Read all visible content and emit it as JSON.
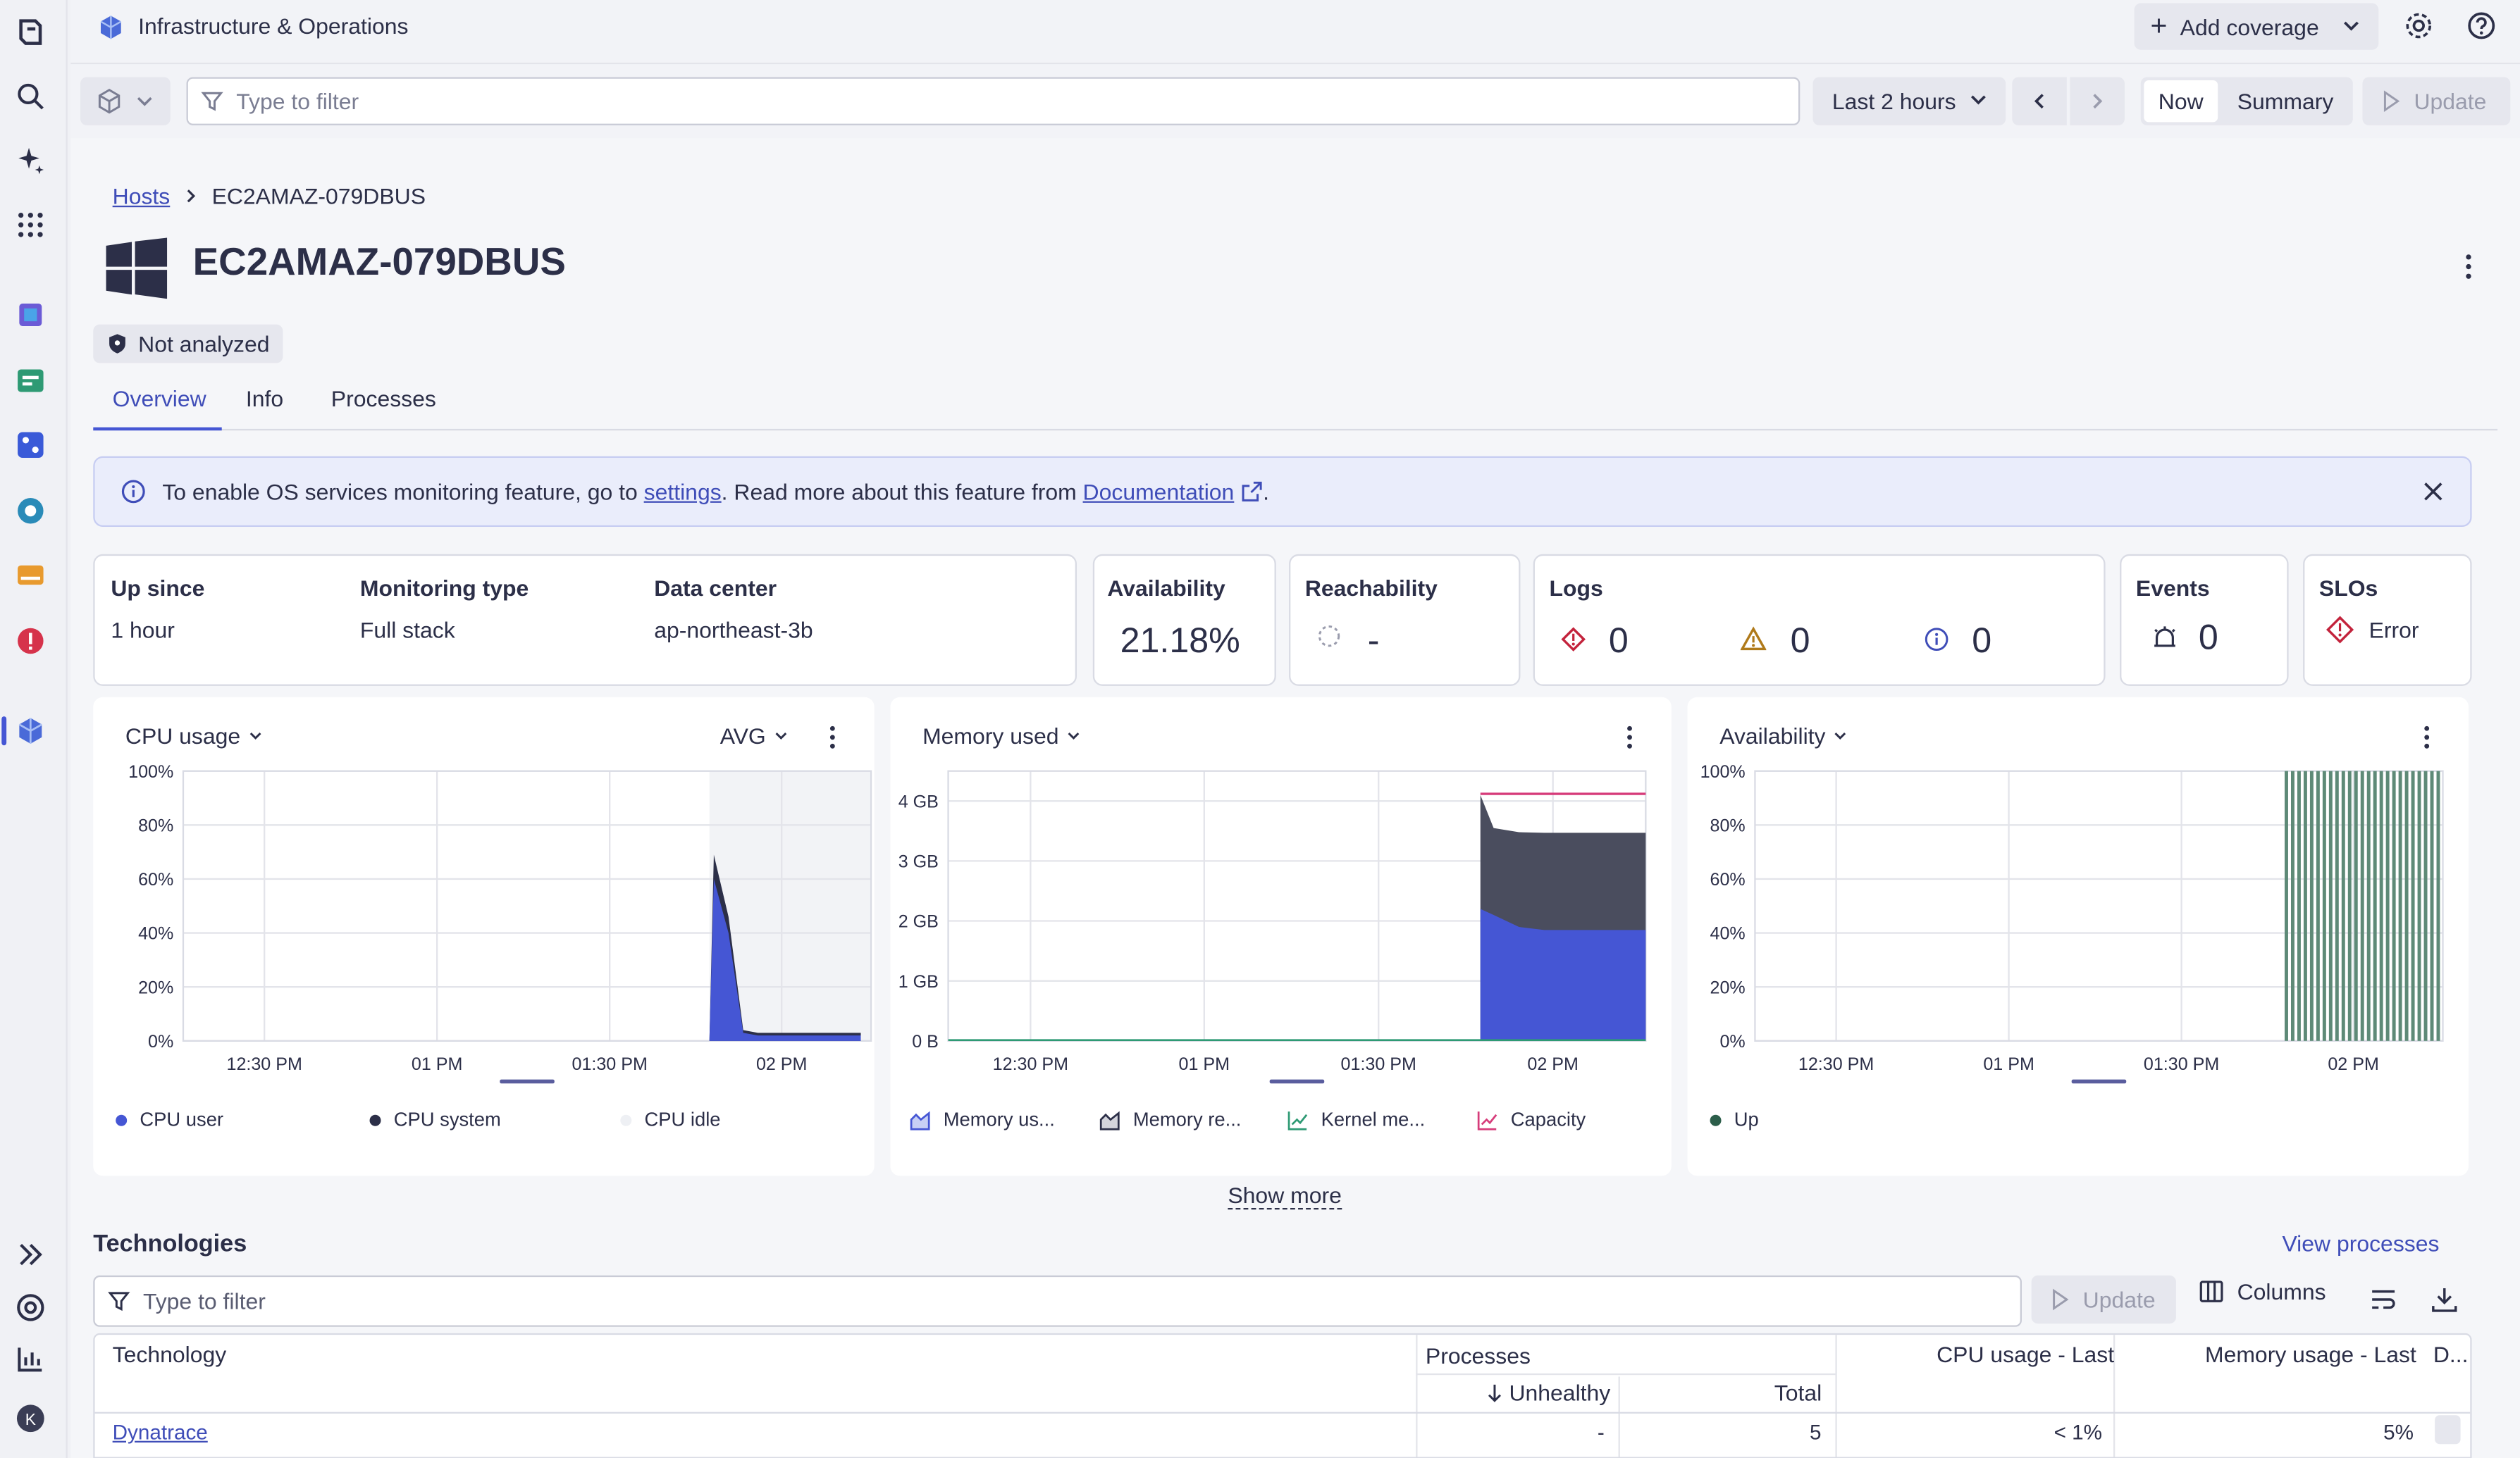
{
  "app": {
    "title": "Infrastructure & Operations",
    "add_coverage": "Add coverage"
  },
  "filterbar": {
    "placeholder": "Type to filter",
    "timeframe": "Last 2 hours",
    "now": "Now",
    "summary": "Summary",
    "update": "Update"
  },
  "breadcrumb": {
    "parent": "Hosts",
    "current": "EC2AMAZ-079DBUS"
  },
  "host": {
    "name": "EC2AMAZ-079DBUS",
    "badge": "Not analyzed"
  },
  "tabs": [
    "Overview",
    "Info",
    "Processes"
  ],
  "banner": {
    "text_before": "To enable OS services monitoring feature, go to",
    "settings_link": "settings",
    "text_middle": ". Read more about this feature from",
    "doc_link": "Documentation",
    "text_after": "."
  },
  "summary": {
    "up_since_label": "Up since",
    "up_since": "1 hour",
    "monitoring_type_label": "Monitoring type",
    "monitoring_type": "Full stack",
    "data_center_label": "Data center",
    "data_center": "ap-northeast-3b",
    "availability_label": "Availability",
    "availability": "21.18%",
    "reachability_label": "Reachability",
    "reachability": "-",
    "logs_label": "Logs",
    "logs_error": "0",
    "logs_warning": "0",
    "logs_info": "0",
    "events_label": "Events",
    "events": "0",
    "slos_label": "SLOs",
    "slos": "Error"
  },
  "charts": {
    "cpu": {
      "title": "CPU usage",
      "agg": "AVG",
      "legend": [
        "CPU user",
        "CPU system",
        "CPU idle"
      ]
    },
    "memory": {
      "title": "Memory used",
      "legend": [
        "Memory us...",
        "Memory re...",
        "Kernel me...",
        "Capacity"
      ]
    },
    "availability": {
      "title": "Availability",
      "legend": [
        "Up"
      ]
    }
  },
  "chart_data": [
    {
      "type": "area",
      "title": "CPU usage",
      "x_ticks": [
        "12:30 PM",
        "01 PM",
        "01:30 PM",
        "02 PM"
      ],
      "y_ticks": [
        "0%",
        "20%",
        "40%",
        "60%",
        "80%",
        "100%"
      ],
      "ylim": [
        0,
        100
      ],
      "series": [
        {
          "name": "CPU user",
          "color": "#4556d4",
          "values": [
            0,
            0,
            0,
            0,
            0,
            0,
            0,
            0,
            0,
            0,
            0,
            0,
            0,
            0,
            0,
            0,
            60,
            40,
            3,
            2,
            2,
            2,
            2,
            2,
            2,
            2,
            2
          ]
        },
        {
          "name": "CPU system",
          "color": "#2c2f48",
          "values": [
            0,
            0,
            0,
            0,
            0,
            0,
            0,
            0,
            0,
            0,
            0,
            0,
            0,
            0,
            0,
            0,
            9,
            6,
            1,
            1,
            1,
            1,
            1,
            1,
            1,
            1,
            1
          ]
        }
      ]
    },
    {
      "type": "area",
      "title": "Memory used",
      "x_ticks": [
        "12:30 PM",
        "01 PM",
        "01:30 PM",
        "02 PM"
      ],
      "y_ticks": [
        "0 B",
        "1 GB",
        "2 GB",
        "3 GB",
        "4 GB"
      ],
      "ylim": [
        0,
        4.5
      ],
      "series": [
        {
          "name": "Memory us...",
          "color": "#4556d4",
          "values": [
            2.2,
            2.1,
            1.9,
            1.85,
            1.85,
            1.85,
            1.85,
            1.85
          ]
        },
        {
          "name": "Memory re...",
          "color": "#4a4d5e",
          "values": [
            4.1,
            3.55,
            3.48,
            3.47,
            3.47,
            3.47,
            3.47,
            3.47
          ]
        },
        {
          "name": "Capacity",
          "color": "#d63c7a",
          "values": [
            4.12,
            4.12,
            4.12,
            4.12,
            4.12,
            4.12,
            4.12,
            4.12
          ]
        }
      ]
    },
    {
      "type": "bar",
      "title": "Availability",
      "x_ticks": [
        "12:30 PM",
        "01 PM",
        "01:30 PM",
        "02 PM"
      ],
      "y_ticks": [
        "0%",
        "20%",
        "40%",
        "60%",
        "80%",
        "100%"
      ],
      "ylim": [
        0,
        100
      ],
      "series": [
        {
          "name": "Up",
          "color": "#5e8a77",
          "values": [
            100,
            100,
            100,
            100,
            100,
            100,
            100,
            100,
            100,
            100,
            100,
            100,
            100,
            100,
            100,
            100,
            100,
            100,
            100,
            100,
            100,
            100,
            100,
            100,
            100
          ]
        }
      ]
    }
  ],
  "show_more": "Show more",
  "technologies": {
    "title": "Technologies",
    "view_processes": "View processes",
    "filter_placeholder": "Type to filter",
    "update": "Update",
    "columns": "Columns",
    "headers": {
      "technology": "Technology",
      "processes": "Processes",
      "unhealthy": "Unhealthy",
      "total": "Total",
      "cpu": "CPU usage - Last",
      "memory": "Memory usage - Last",
      "d": "D..."
    },
    "rows": [
      {
        "technology": "Dynatrace",
        "unhealthy": "-",
        "total": "5",
        "cpu": "< 1%",
        "memory": "5%"
      }
    ]
  },
  "rail": {
    "user_initial": "K"
  }
}
